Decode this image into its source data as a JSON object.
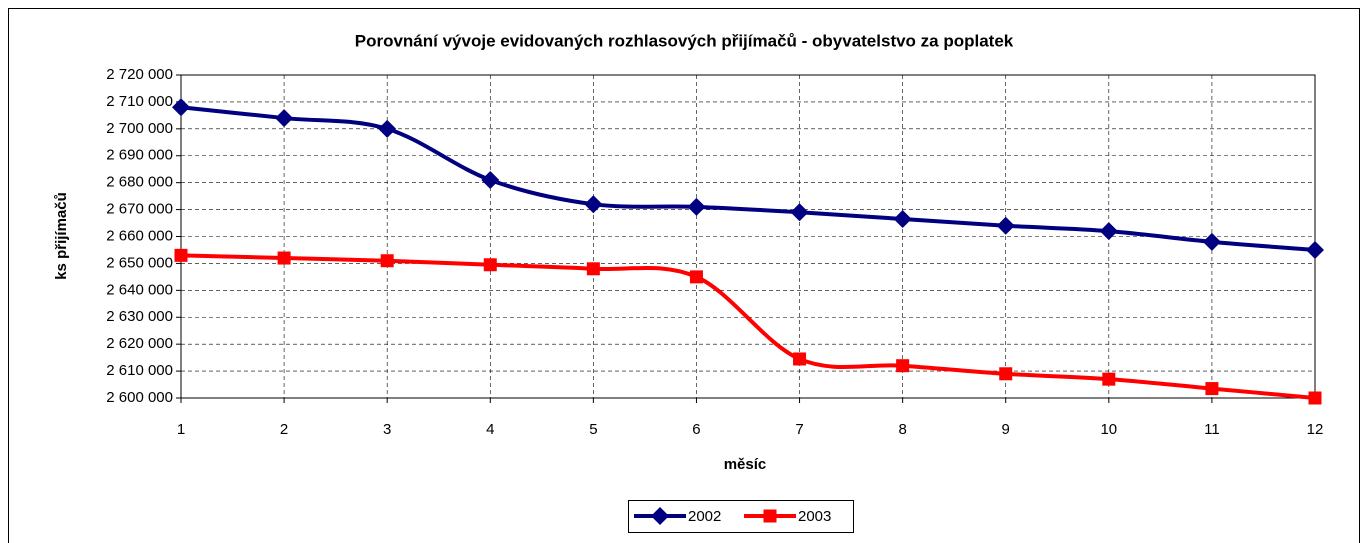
{
  "chart_data": {
    "type": "line",
    "title": "Porovnání vývoje evidovaných rozhlasových přijímačů - obyvatelstvo za poplatek",
    "x_label": "měsíc",
    "y_label": "ks přijímačů",
    "x": [
      1,
      2,
      3,
      4,
      5,
      6,
      7,
      8,
      9,
      10,
      11,
      12
    ],
    "series": [
      {
        "name": "2002",
        "color": "#000080",
        "marker": "diamond",
        "values": [
          2708000,
          2704000,
          2700000,
          2681000,
          2672000,
          2671000,
          2669000,
          2666500,
          2664000,
          2662000,
          2658000,
          2655000
        ]
      },
      {
        "name": "2003",
        "color": "#ff0000",
        "marker": "square",
        "values": [
          2653000,
          2652000,
          2651000,
          2649500,
          2648000,
          2645000,
          2614500,
          2612000,
          2609000,
          2607000,
          2603500,
          2600000
        ]
      }
    ],
    "xlim": [
      1,
      12
    ],
    "xticks": [
      1,
      2,
      3,
      4,
      5,
      6,
      7,
      8,
      9,
      10,
      11,
      12
    ],
    "ylim": [
      2600000,
      2720000
    ],
    "yticks": [
      {
        "value": 2600000,
        "label": "2 600 000"
      },
      {
        "value": 2610000,
        "label": "2 610 000"
      },
      {
        "value": 2620000,
        "label": "2 620 000"
      },
      {
        "value": 2630000,
        "label": "2 630 000"
      },
      {
        "value": 2640000,
        "label": "2 640 000"
      },
      {
        "value": 2650000,
        "label": "2 650 000"
      },
      {
        "value": 2660000,
        "label": "2 660 000"
      },
      {
        "value": 2670000,
        "label": "2 670 000"
      },
      {
        "value": 2680000,
        "label": "2 680 000"
      },
      {
        "value": 2690000,
        "label": "2 690 000"
      },
      {
        "value": 2700000,
        "label": "2 700 000"
      },
      {
        "value": 2710000,
        "label": "2 710 000"
      },
      {
        "value": 2720000,
        "label": "2 720 000"
      }
    ],
    "grid": true,
    "smooth": true,
    "legend": "bottom"
  }
}
